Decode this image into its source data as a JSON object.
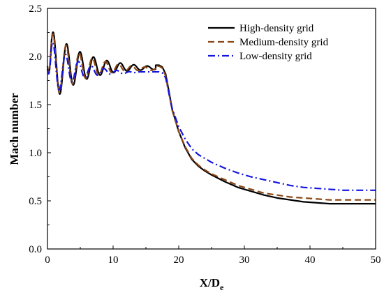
{
  "chart_data": {
    "type": "line",
    "title": "",
    "xlabel_main": "X/D",
    "xlabel_sub": "e",
    "ylabel": "Mach number",
    "xlim": [
      0,
      50
    ],
    "ylim": [
      0,
      2.5
    ],
    "xticks": [
      "0",
      "10",
      "20",
      "30",
      "40",
      "50"
    ],
    "yticks": [
      "0.0",
      "0.5",
      "1.0",
      "1.5",
      "2.0",
      "2.5"
    ],
    "grid": false,
    "legend_position": "top-right",
    "series": [
      {
        "name": "High-density grid",
        "color": "#000000",
        "dash": "solid",
        "osc": {
          "start": 0,
          "end": 16.5,
          "period": 2.05,
          "amp0": 0.42,
          "decay": 0.2,
          "min_level": 1.45,
          "base_start": 1.9,
          "base_end": 1.88
        },
        "x": [
          16.5,
          17,
          17.5,
          18,
          18.5,
          19,
          20,
          21,
          22,
          23,
          24,
          25,
          27,
          29,
          31,
          33,
          35,
          37,
          39,
          41,
          43,
          45,
          47,
          49,
          50
        ],
        "y": [
          1.91,
          1.91,
          1.89,
          1.82,
          1.64,
          1.45,
          1.22,
          1.05,
          0.93,
          0.86,
          0.81,
          0.77,
          0.7,
          0.64,
          0.6,
          0.56,
          0.53,
          0.51,
          0.49,
          0.48,
          0.47,
          0.47,
          0.47,
          0.47,
          0.47
        ]
      },
      {
        "name": "Medium-density grid",
        "color": "#8B4513",
        "dash": "dashed",
        "osc": {
          "start": 0,
          "end": 16.5,
          "period": 2.0,
          "amp0": 0.4,
          "decay": 0.21,
          "min_level": 1.47,
          "base_start": 1.9,
          "base_end": 1.87
        },
        "x": [
          16.5,
          17,
          17.5,
          18,
          18.5,
          19,
          20,
          21,
          22,
          23,
          24,
          25,
          27,
          29,
          31,
          33,
          35,
          37,
          39,
          41,
          43,
          45,
          47,
          49,
          50
        ],
        "y": [
          1.9,
          1.9,
          1.88,
          1.8,
          1.62,
          1.44,
          1.22,
          1.06,
          0.94,
          0.87,
          0.82,
          0.78,
          0.72,
          0.66,
          0.62,
          0.58,
          0.56,
          0.54,
          0.53,
          0.52,
          0.51,
          0.51,
          0.51,
          0.51,
          0.51
        ]
      },
      {
        "name": "Low-density grid",
        "color": "#1515E0",
        "dash": "dashdot",
        "osc": {
          "start": 0,
          "end": 13,
          "period": 1.95,
          "amp0": 0.35,
          "decay": 0.28,
          "min_level": 1.52,
          "base_start": 1.87,
          "base_end": 1.83
        },
        "x": [
          13,
          14,
          15,
          16,
          17,
          17.5,
          18,
          18.5,
          19,
          20,
          21,
          22,
          23,
          24,
          25,
          27,
          29,
          31,
          33,
          35,
          37,
          39,
          41,
          43,
          45,
          47,
          49,
          50
        ],
        "y": [
          1.83,
          1.84,
          1.84,
          1.84,
          1.84,
          1.83,
          1.78,
          1.62,
          1.46,
          1.27,
          1.14,
          1.04,
          0.98,
          0.94,
          0.9,
          0.84,
          0.79,
          0.75,
          0.72,
          0.69,
          0.66,
          0.64,
          0.63,
          0.62,
          0.61,
          0.61,
          0.61,
          0.61
        ]
      }
    ]
  }
}
